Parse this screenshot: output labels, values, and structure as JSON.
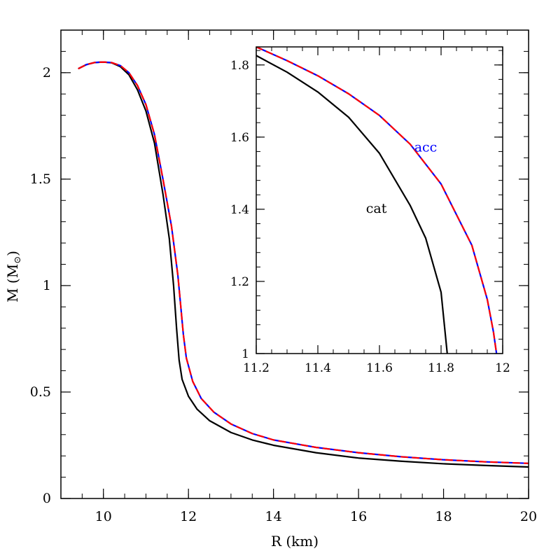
{
  "chart_data": [
    {
      "type": "line",
      "panel": "main",
      "xlabel": "R (km)",
      "ylabel_base": "M (M",
      "ylabel_sub": "⊙",
      "ylabel_close": ")",
      "xlim": [
        9,
        20
      ],
      "ylim": [
        0,
        2.2
      ],
      "xticks": [
        10,
        12,
        14,
        16,
        18,
        20
      ],
      "xtick_labels": [
        "10",
        "12",
        "14",
        "16",
        "18",
        "20"
      ],
      "yticks": [
        0,
        0.5,
        1,
        1.5,
        2
      ],
      "ytick_labels": [
        "0",
        "0.5",
        "1",
        "1.5",
        "2"
      ],
      "grid": false,
      "series": [
        {
          "color": "#000000",
          "style": "solid",
          "points": [
            [
              9.42,
              2.02
            ],
            [
              9.6,
              2.038
            ],
            [
              9.8,
              2.048
            ],
            [
              10.0,
              2.05
            ],
            [
              10.2,
              2.046
            ],
            [
              10.4,
              2.028
            ],
            [
              10.6,
              1.99
            ],
            [
              10.8,
              1.92
            ],
            [
              11.0,
              1.82
            ],
            [
              11.2,
              1.67
            ],
            [
              11.4,
              1.43
            ],
            [
              11.55,
              1.22
            ],
            [
              11.65,
              1.0
            ],
            [
              11.72,
              0.8
            ],
            [
              11.78,
              0.65
            ],
            [
              11.85,
              0.56
            ],
            [
              12.0,
              0.48
            ],
            [
              12.2,
              0.42
            ],
            [
              12.5,
              0.365
            ],
            [
              13.0,
              0.31
            ],
            [
              13.5,
              0.275
            ],
            [
              14.0,
              0.25
            ],
            [
              15.0,
              0.215
            ],
            [
              16.0,
              0.19
            ],
            [
              17.0,
              0.175
            ],
            [
              18.0,
              0.163
            ],
            [
              19.0,
              0.155
            ],
            [
              20.0,
              0.148
            ]
          ]
        },
        {
          "color": "#0000ff",
          "style": "solid",
          "points": [
            [
              9.42,
              2.02
            ],
            [
              9.6,
              2.038
            ],
            [
              9.8,
              2.048
            ],
            [
              10.0,
              2.05
            ],
            [
              10.2,
              2.047
            ],
            [
              10.4,
              2.033
            ],
            [
              10.6,
              2.0
            ],
            [
              10.8,
              1.94
            ],
            [
              11.0,
              1.85
            ],
            [
              11.2,
              1.71
            ],
            [
              11.4,
              1.5
            ],
            [
              11.6,
              1.28
            ],
            [
              11.75,
              1.05
            ],
            [
              11.82,
              0.9
            ],
            [
              11.88,
              0.77
            ],
            [
              11.95,
              0.66
            ],
            [
              12.1,
              0.55
            ],
            [
              12.3,
              0.47
            ],
            [
              12.6,
              0.405
            ],
            [
              13.0,
              0.35
            ],
            [
              13.5,
              0.305
            ],
            [
              14.0,
              0.275
            ],
            [
              15.0,
              0.24
            ],
            [
              16.0,
              0.215
            ],
            [
              17.0,
              0.196
            ],
            [
              18.0,
              0.182
            ],
            [
              19.0,
              0.172
            ],
            [
              20.0,
              0.165
            ]
          ]
        },
        {
          "color": "#ff0000",
          "style": "dashed",
          "points": [
            [
              9.42,
              2.02
            ],
            [
              9.6,
              2.038
            ],
            [
              9.8,
              2.048
            ],
            [
              10.0,
              2.05
            ],
            [
              10.2,
              2.047
            ],
            [
              10.4,
              2.033
            ],
            [
              10.6,
              2.0
            ],
            [
              10.8,
              1.94
            ],
            [
              11.0,
              1.85
            ],
            [
              11.2,
              1.71
            ],
            [
              11.4,
              1.5
            ],
            [
              11.6,
              1.28
            ],
            [
              11.75,
              1.05
            ],
            [
              11.82,
              0.9
            ],
            [
              11.88,
              0.77
            ],
            [
              11.95,
              0.66
            ],
            [
              12.1,
              0.55
            ],
            [
              12.3,
              0.47
            ],
            [
              12.6,
              0.405
            ],
            [
              13.0,
              0.35
            ],
            [
              13.5,
              0.305
            ],
            [
              14.0,
              0.275
            ],
            [
              15.0,
              0.24
            ],
            [
              16.0,
              0.215
            ],
            [
              17.0,
              0.196
            ],
            [
              18.0,
              0.182
            ],
            [
              19.0,
              0.172
            ],
            [
              20.0,
              0.165
            ]
          ]
        }
      ]
    },
    {
      "type": "line",
      "panel": "inset",
      "xlim": [
        11.2,
        12
      ],
      "ylim": [
        1,
        1.85
      ],
      "xticks": [
        11.2,
        11.4,
        11.6,
        11.8,
        12
      ],
      "xtick_labels": [
        "11.2",
        "11.4",
        "11.6",
        "11.8",
        "12"
      ],
      "yticks": [
        1,
        1.2,
        1.4,
        1.6,
        1.8
      ],
      "ytick_labels": [
        "1",
        "1.2",
        "1.4",
        "1.6",
        "1.8"
      ],
      "grid": false,
      "annotations": [
        {
          "text": "acc",
          "x": 11.75,
          "y": 1.56,
          "color": "#0000ff"
        },
        {
          "text": "cat",
          "x": 11.59,
          "y": 1.39,
          "color": "#000000"
        }
      ],
      "series": [
        {
          "color": "#000000",
          "style": "solid",
          "points": [
            [
              11.2,
              1.826
            ],
            [
              11.3,
              1.78
            ],
            [
              11.4,
              1.725
            ],
            [
              11.5,
              1.655
            ],
            [
              11.6,
              1.555
            ],
            [
              11.7,
              1.41
            ],
            [
              11.75,
              1.32
            ],
            [
              11.8,
              1.17
            ],
            [
              11.82,
              1.0
            ]
          ]
        },
        {
          "color": "#0000ff",
          "style": "solid",
          "points": [
            [
              11.2,
              1.85
            ],
            [
              11.3,
              1.812
            ],
            [
              11.4,
              1.77
            ],
            [
              11.5,
              1.72
            ],
            [
              11.6,
              1.66
            ],
            [
              11.7,
              1.58
            ],
            [
              11.8,
              1.47
            ],
            [
              11.9,
              1.3
            ],
            [
              11.95,
              1.15
            ],
            [
              11.97,
              1.06
            ],
            [
              11.98,
              1.0
            ]
          ]
        },
        {
          "color": "#ff0000",
          "style": "dashed",
          "points": [
            [
              11.2,
              1.85
            ],
            [
              11.3,
              1.812
            ],
            [
              11.4,
              1.77
            ],
            [
              11.5,
              1.72
            ],
            [
              11.6,
              1.66
            ],
            [
              11.7,
              1.58
            ],
            [
              11.8,
              1.47
            ],
            [
              11.9,
              1.3
            ],
            [
              11.95,
              1.15
            ],
            [
              11.97,
              1.06
            ],
            [
              11.98,
              1.0
            ]
          ]
        }
      ]
    }
  ]
}
